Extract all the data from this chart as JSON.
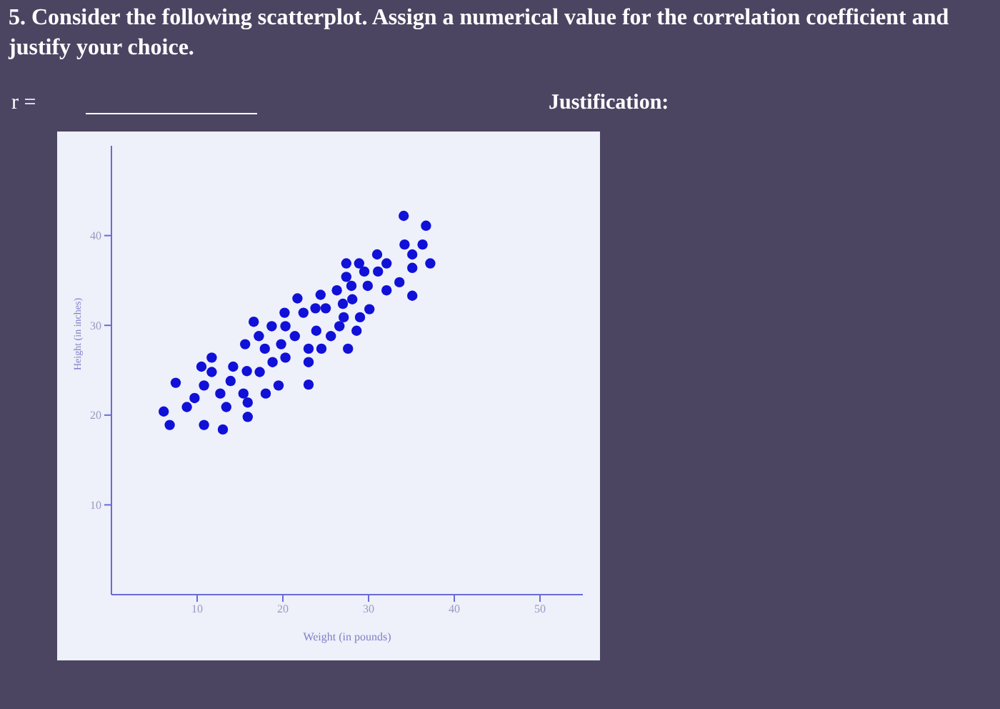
{
  "chart_data": {
    "type": "scatter",
    "title": "5. Consider the following scatterplot. Assign a numerical value for the correlation coefficient and justify your choice.",
    "annotations": [
      "r =",
      "Justification:"
    ],
    "xlabel": "Weight (in pounds)",
    "ylabel": "Height (in inches)",
    "x": [
      6.1,
      6.8,
      7.5,
      8.8,
      9.7,
      10.5,
      10.8,
      10.8,
      11.7,
      11.7,
      12.7,
      13.0,
      13.4,
      13.9,
      14.2,
      15.4,
      15.6,
      15.8,
      15.9,
      15.9,
      16.6,
      17.2,
      17.3,
      17.9,
      18.0,
      18.7,
      18.8,
      19.5,
      19.8,
      20.2,
      20.3,
      20.3,
      21.4,
      21.7,
      22.4,
      23.0,
      23.0,
      23.0,
      23.8,
      23.9,
      24.4,
      24.5,
      25.0,
      25.6,
      26.3,
      26.6,
      27.0,
      27.1,
      27.4,
      27.4,
      27.6,
      28.0,
      28.1,
      28.6,
      28.9,
      29.0,
      29.5,
      29.9,
      30.1,
      31.0,
      31.1,
      32.1,
      32.1,
      33.6,
      34.1,
      34.2,
      35.1,
      35.1,
      35.1,
      36.3,
      36.7,
      37.2
    ],
    "values": [
      20.4,
      18.9,
      23.6,
      20.9,
      21.9,
      25.4,
      23.3,
      18.9,
      26.4,
      24.8,
      22.4,
      18.4,
      20.9,
      23.8,
      25.4,
      22.4,
      27.9,
      24.9,
      21.4,
      19.8,
      30.4,
      28.8,
      24.8,
      27.4,
      22.4,
      29.9,
      25.9,
      23.3,
      27.9,
      31.4,
      29.9,
      26.4,
      28.8,
      33.0,
      31.4,
      27.4,
      25.9,
      23.4,
      31.9,
      29.4,
      33.4,
      27.4,
      31.9,
      28.8,
      33.9,
      29.9,
      32.4,
      30.9,
      36.9,
      35.4,
      27.4,
      34.4,
      32.9,
      29.4,
      36.9,
      30.9,
      36.0,
      34.4,
      31.8,
      37.9,
      36.0,
      36.9,
      33.9,
      34.8,
      42.2,
      39.0,
      37.9,
      36.4,
      33.3,
      39.0,
      41.1,
      36.9
    ],
    "color": "#1010d8",
    "xlim": [
      0,
      55
    ],
    "ylim": [
      0,
      50
    ],
    "xticks": [
      10,
      20,
      30,
      40,
      50
    ],
    "yticks": [
      10,
      20,
      30,
      40
    ],
    "marker": "circle"
  }
}
